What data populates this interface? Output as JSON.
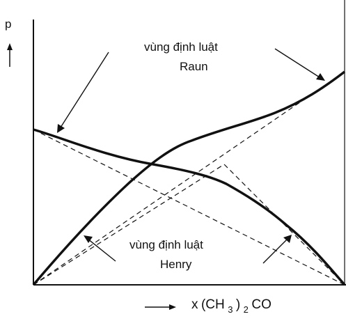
{
  "diagram": {
    "y_axis_label": "p",
    "x_axis_label": {
      "main": "x",
      "subscript_1": "(CH",
      "subscript_2": "3",
      "subscript_3": ")",
      "subscript_4": "2",
      "suffix": "CO"
    },
    "raoult_region": {
      "line1": "vùng định luật",
      "line2": "Raun"
    },
    "henry_region": {
      "line1": "vùng định luật",
      "line2": "Henry"
    }
  }
}
